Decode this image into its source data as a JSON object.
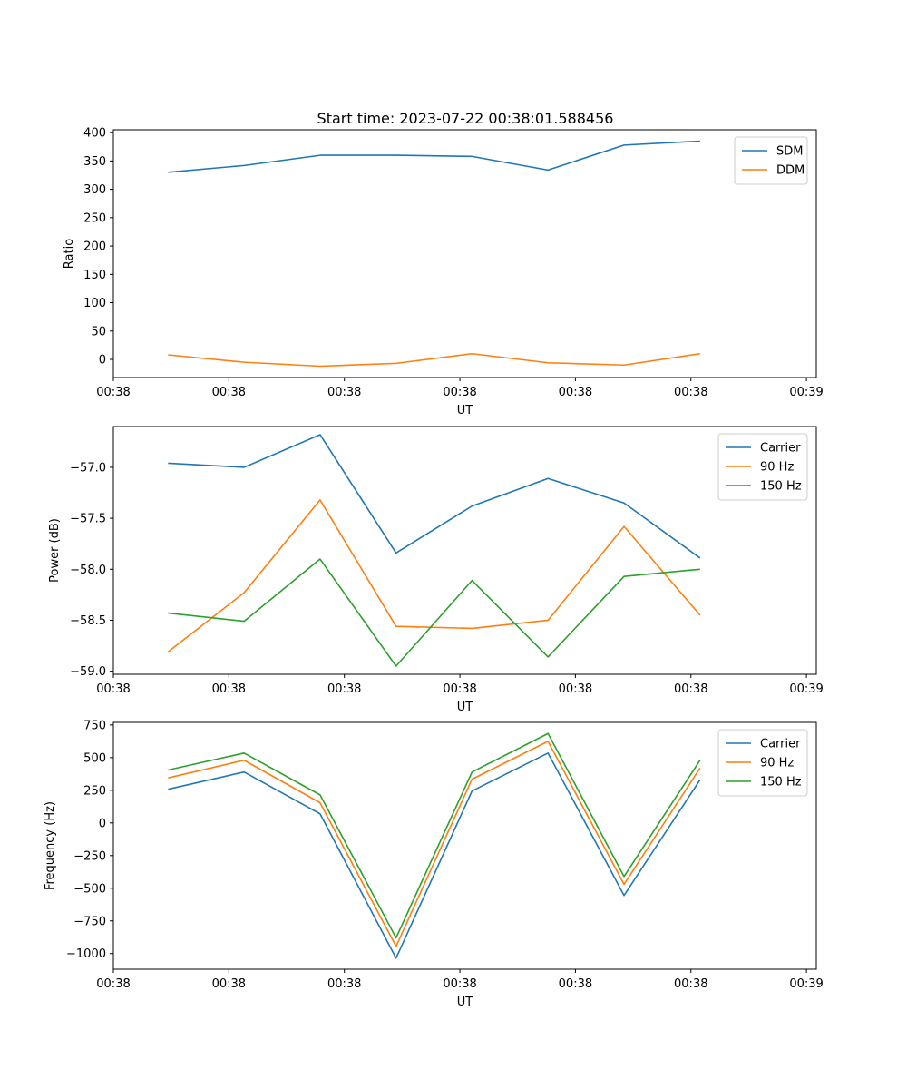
{
  "title": "Start time: 2023-07-22 00:38:01.588456",
  "chart_data": [
    {
      "type": "line",
      "title": "Start time: 2023-07-22 00:38:01.588456",
      "xlabel": "UT",
      "ylabel": "Ratio",
      "x": [
        0,
        1,
        2,
        3,
        4,
        5,
        6,
        7
      ],
      "xlim": [
        -0.72,
        8.53
      ],
      "xticks": [
        -0.72,
        0.8,
        2.32,
        3.84,
        5.36,
        6.88,
        8.4
      ],
      "xtick_labels": [
        "00:38",
        "00:38",
        "00:38",
        "00:38",
        "00:38",
        "00:38",
        "00:39"
      ],
      "ylim": [
        -32,
        405
      ],
      "yticks": [
        0,
        50,
        100,
        150,
        200,
        250,
        300,
        350,
        400
      ],
      "ytick_labels": [
        "0",
        "50",
        "100",
        "150",
        "200",
        "250",
        "300",
        "350",
        "400"
      ],
      "legend": "top-right",
      "series": [
        {
          "name": "SDM",
          "color": "#1f77b4",
          "values": [
            330,
            342,
            360,
            360,
            358,
            334,
            378,
            385
          ]
        },
        {
          "name": "DDM",
          "color": "#ff7f0e",
          "values": [
            8,
            -5,
            -12,
            -7,
            10,
            -6,
            -10,
            10
          ]
        }
      ]
    },
    {
      "type": "line",
      "title": "",
      "xlabel": "UT",
      "ylabel": "Power (dB)",
      "x": [
        0,
        1,
        2,
        3,
        4,
        5,
        6,
        7
      ],
      "xlim": [
        -0.72,
        8.53
      ],
      "xticks": [
        -0.72,
        0.8,
        2.32,
        3.84,
        5.36,
        6.88,
        8.4
      ],
      "xtick_labels": [
        "00:38",
        "00:38",
        "00:38",
        "00:38",
        "00:38",
        "00:38",
        "00:39"
      ],
      "ylim": [
        -59.03,
        -56.6
      ],
      "yticks": [
        -59.0,
        -58.5,
        -58.0,
        -57.5,
        -57.0
      ],
      "ytick_labels": [
        "−59.0",
        "−58.5",
        "−58.0",
        "−57.5",
        "−57.0"
      ],
      "legend": "top-right",
      "series": [
        {
          "name": "Carrier",
          "color": "#1f77b4",
          "values": [
            -56.96,
            -57.0,
            -56.68,
            -57.84,
            -57.38,
            -57.11,
            -57.35,
            -57.89
          ]
        },
        {
          "name": "90 Hz",
          "color": "#ff7f0e",
          "values": [
            -58.81,
            -58.23,
            -57.32,
            -58.56,
            -58.58,
            -58.5,
            -57.58,
            -58.45
          ]
        },
        {
          "name": "150 Hz",
          "color": "#2ca02c",
          "values": [
            -58.43,
            -58.51,
            -57.9,
            -58.95,
            -58.11,
            -58.86,
            -58.07,
            -58.0
          ]
        }
      ]
    },
    {
      "type": "line",
      "title": "",
      "xlabel": "UT",
      "ylabel": "Frequency (Hz)",
      "x": [
        0,
        1,
        2,
        3,
        4,
        5,
        6,
        7
      ],
      "xlim": [
        -0.72,
        8.53
      ],
      "xticks": [
        -0.72,
        0.8,
        2.32,
        3.84,
        5.36,
        6.88,
        8.4
      ],
      "xtick_labels": [
        "00:38",
        "00:38",
        "00:38",
        "00:38",
        "00:38",
        "00:38",
        "00:39"
      ],
      "ylim": [
        -1120,
        770
      ],
      "yticks": [
        -1000,
        -750,
        -500,
        -250,
        0,
        250,
        500,
        750
      ],
      "ytick_labels": [
        "−1000",
        "−750",
        "−500",
        "−250",
        "0",
        "250",
        "500",
        "750"
      ],
      "legend": "top-right",
      "series": [
        {
          "name": "Carrier",
          "color": "#1f77b4",
          "values": [
            258,
            390,
            70,
            -1035,
            245,
            535,
            -555,
            330
          ]
        },
        {
          "name": "90 Hz",
          "color": "#ff7f0e",
          "values": [
            345,
            480,
            155,
            -945,
            335,
            625,
            -470,
            420
          ]
        },
        {
          "name": "150 Hz",
          "color": "#2ca02c",
          "values": [
            405,
            535,
            215,
            -880,
            390,
            685,
            -410,
            480
          ]
        }
      ]
    }
  ]
}
